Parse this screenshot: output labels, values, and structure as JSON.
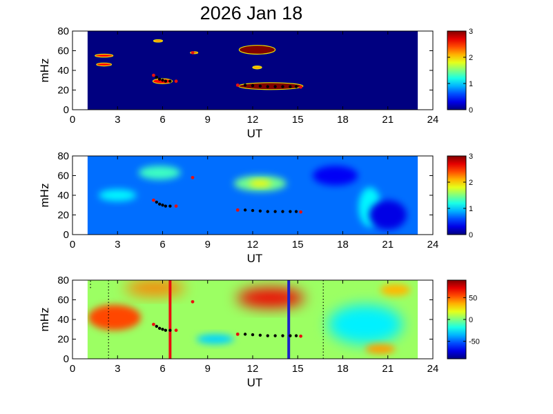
{
  "title": "2026 Jan 18",
  "chart_data": [
    {
      "type": "heatmap",
      "panel": 1,
      "xlabel": "UT",
      "ylabel": "mHz",
      "xlim": [
        0,
        24
      ],
      "ylim": [
        0,
        80
      ],
      "xticks": [
        0,
        3,
        6,
        9,
        12,
        15,
        18,
        21,
        24
      ],
      "yticks": [
        0,
        20,
        40,
        60,
        80
      ],
      "data_x_range": [
        1,
        23
      ],
      "background_value": 0,
      "colorbar": {
        "range": [
          0,
          3
        ],
        "ticks": [
          0,
          1,
          2,
          3
        ],
        "colormap": "jet"
      },
      "blobs": [
        {
          "ut": 2.1,
          "mhz": 55,
          "ut_width": 1.2,
          "mhz_height": 3,
          "value": 2.6
        },
        {
          "ut": 2.1,
          "mhz": 46,
          "ut_width": 1.0,
          "mhz_height": 3,
          "value": 2.6
        },
        {
          "ut": 5.7,
          "mhz": 70,
          "ut_width": 0.6,
          "mhz_height": 2.5,
          "value": 2.2
        },
        {
          "ut": 6.0,
          "mhz": 29,
          "ut_width": 1.3,
          "mhz_height": 5,
          "value": 2.6
        },
        {
          "ut": 8.1,
          "mhz": 58,
          "ut_width": 0.5,
          "mhz_height": 2,
          "value": 2.4
        },
        {
          "ut": 12.3,
          "mhz": 61,
          "ut_width": 2.4,
          "mhz_height": 9,
          "value": 3.0
        },
        {
          "ut": 12.3,
          "mhz": 43,
          "ut_width": 0.6,
          "mhz_height": 3,
          "value": 2.1
        },
        {
          "ut": 13.2,
          "mhz": 24,
          "ut_width": 4.3,
          "mhz_height": 7,
          "value": 3.0
        }
      ],
      "track_black": [
        [
          5.6,
          33
        ],
        [
          5.8,
          31
        ],
        [
          6.0,
          30
        ],
        [
          6.2,
          29
        ],
        [
          6.5,
          29
        ],
        [
          11.0,
          25
        ],
        [
          11.5,
          25
        ],
        [
          12.0,
          24.5
        ],
        [
          12.5,
          24
        ],
        [
          13.0,
          23.5
        ],
        [
          13.5,
          23.5
        ],
        [
          14.0,
          23.5
        ],
        [
          14.5,
          23.5
        ],
        [
          14.9,
          23.5
        ]
      ],
      "track_red": [
        [
          5.4,
          35
        ],
        [
          6.9,
          29
        ],
        [
          8.0,
          58
        ],
        [
          11.0,
          25
        ],
        [
          15.2,
          23
        ]
      ]
    },
    {
      "type": "heatmap",
      "panel": 2,
      "xlabel": "UT",
      "ylabel": "mHz",
      "xlim": [
        0,
        24
      ],
      "ylim": [
        0,
        80
      ],
      "xticks": [
        0,
        3,
        6,
        9,
        12,
        15,
        18,
        21,
        24
      ],
      "yticks": [
        0,
        20,
        40,
        60,
        80
      ],
      "data_x_range": [
        1,
        23
      ],
      "background_value": 0.7,
      "colorbar": {
        "range": [
          0,
          3
        ],
        "ticks": [
          0,
          1,
          2,
          3
        ],
        "colormap": "jet"
      },
      "blobs": [
        {
          "ut": 12.5,
          "mhz": 52,
          "ut_width": 3.5,
          "mhz_height": 16,
          "value": 1.45
        },
        {
          "ut": 12.5,
          "mhz": 52,
          "ut_width": 1.5,
          "mhz_height": 7,
          "value": 1.9
        },
        {
          "ut": 5.8,
          "mhz": 63,
          "ut_width": 2.8,
          "mhz_height": 14,
          "value": 1.3
        },
        {
          "ut": 3.0,
          "mhz": 40,
          "ut_width": 2.5,
          "mhz_height": 12,
          "value": 1.1
        },
        {
          "ut": 19.8,
          "mhz": 28,
          "ut_width": 1.5,
          "mhz_height": 40,
          "value": 1.1
        },
        {
          "ut": 21.0,
          "mhz": 20,
          "ut_width": 2.5,
          "mhz_height": 30,
          "value": 0.3
        },
        {
          "ut": 17.5,
          "mhz": 60,
          "ut_width": 3.0,
          "mhz_height": 20,
          "value": 0.35
        }
      ],
      "track_black": [
        [
          5.6,
          33
        ],
        [
          5.8,
          31
        ],
        [
          6.0,
          30
        ],
        [
          6.2,
          29
        ],
        [
          6.5,
          29
        ],
        [
          11.0,
          25
        ],
        [
          11.5,
          25
        ],
        [
          12.0,
          24.5
        ],
        [
          12.5,
          24
        ],
        [
          13.0,
          23.5
        ],
        [
          13.5,
          23.5
        ],
        [
          14.0,
          23.5
        ],
        [
          14.5,
          23.5
        ],
        [
          14.9,
          23.5
        ]
      ],
      "track_red": [
        [
          5.4,
          35
        ],
        [
          6.9,
          29
        ],
        [
          8.0,
          58
        ],
        [
          11.0,
          25
        ],
        [
          15.2,
          23
        ]
      ]
    },
    {
      "type": "heatmap",
      "panel": 3,
      "xlabel": "UT",
      "ylabel": "mHz",
      "xlim": [
        0,
        24
      ],
      "ylim": [
        0,
        80
      ],
      "xticks": [
        0,
        3,
        6,
        9,
        12,
        15,
        18,
        21,
        24
      ],
      "yticks": [
        0,
        20,
        40,
        60,
        80
      ],
      "data_x_range": [
        1,
        23
      ],
      "background_value": 5,
      "colorbar": {
        "range": [
          -90,
          90
        ],
        "ticks": [
          50,
          0,
          -50
        ],
        "colormap": "jet"
      },
      "blobs": [
        {
          "ut": 2.8,
          "mhz": 42,
          "ut_width": 3.5,
          "mhz_height": 26,
          "value": 55
        },
        {
          "ut": 5.5,
          "mhz": 72,
          "ut_width": 4.0,
          "mhz_height": 16,
          "value": 45
        },
        {
          "ut": 13.2,
          "mhz": 62,
          "ut_width": 4.5,
          "mhz_height": 20,
          "value": 70
        },
        {
          "ut": 9.5,
          "mhz": 20,
          "ut_width": 2.5,
          "mhz_height": 10,
          "value": -30
        },
        {
          "ut": 19.5,
          "mhz": 35,
          "ut_width": 5.0,
          "mhz_height": 40,
          "value": -25
        },
        {
          "ut": 21.5,
          "mhz": 70,
          "ut_width": 2.0,
          "mhz_height": 12,
          "value": 35
        },
        {
          "ut": 20.5,
          "mhz": 10,
          "ut_width": 2.0,
          "mhz_height": 10,
          "value": 40
        }
      ],
      "track_black": [
        [
          5.6,
          33
        ],
        [
          5.8,
          31
        ],
        [
          6.0,
          30
        ],
        [
          6.2,
          29
        ],
        [
          6.5,
          29
        ],
        [
          11.0,
          25
        ],
        [
          11.5,
          25
        ],
        [
          12.0,
          24.5
        ],
        [
          12.5,
          24
        ],
        [
          13.0,
          23.5
        ],
        [
          13.5,
          23.5
        ],
        [
          14.0,
          23.5
        ],
        [
          14.5,
          23.5
        ],
        [
          14.9,
          23.5
        ]
      ],
      "track_red": [
        [
          5.4,
          35
        ],
        [
          6.9,
          29
        ],
        [
          8.0,
          58
        ],
        [
          11.0,
          25
        ],
        [
          15.2,
          23
        ]
      ],
      "vertical_lines": [
        {
          "ut": 6.5,
          "color": "#e8100f"
        },
        {
          "ut": 14.4,
          "color": "#1f1fc8"
        }
      ],
      "dotted_lines": [
        {
          "ut": 1.2,
          "mhz_range": [
            72,
            80
          ]
        },
        {
          "ut": 2.4,
          "mhz_range": [
            0,
            80
          ]
        },
        {
          "ut": 16.7,
          "mhz_range": [
            0,
            80
          ]
        }
      ]
    }
  ]
}
